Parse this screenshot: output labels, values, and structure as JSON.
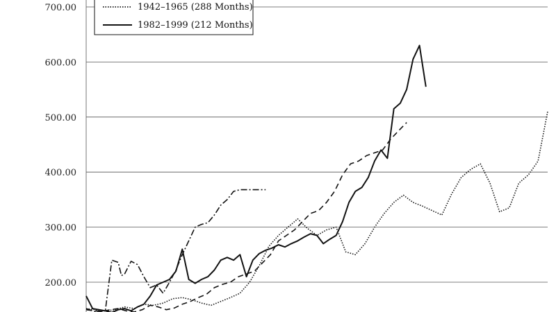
{
  "chart_data": {
    "type": "line",
    "title": "",
    "xlabel": "",
    "ylabel": "",
    "ylim": [
      150,
      720
    ],
    "xlim": [
      0,
      288
    ],
    "grid": "horizontal",
    "legend_placement": "top-left",
    "y_ticks": [
      {
        "value": 200,
        "label": "200.00"
      },
      {
        "value": 300,
        "label": "300.00"
      },
      {
        "value": 400,
        "label": "400.00"
      },
      {
        "value": 500,
        "label": "500.00"
      },
      {
        "value": 600,
        "label": "600.00"
      },
      {
        "value": 700,
        "label": "700.00"
      }
    ],
    "legend_entries": [
      {
        "label": "1942–1965 (288 Months)",
        "series_index": 2
      },
      {
        "label": "1982–1999 (212 Months)",
        "series_index": 3
      }
    ],
    "series": [
      {
        "style": "dashdot",
        "color": "#111111",
        "x": [
          0,
          4,
          8,
          12,
          16,
          20,
          22,
          24,
          28,
          32,
          36,
          40,
          44,
          48,
          52,
          56,
          60,
          64,
          68,
          72,
          76,
          80,
          84,
          88,
          92,
          96,
          100,
          104,
          108,
          112
        ],
        "y": [
          152,
          148,
          145,
          150,
          240,
          236,
          212,
          215,
          238,
          232,
          210,
          190,
          195,
          180,
          200,
          222,
          250,
          275,
          300,
          305,
          308,
          322,
          340,
          350,
          365,
          368,
          368,
          368,
          368,
          368
        ]
      },
      {
        "style": "dashed",
        "color": "#111111",
        "x": [
          0,
          5,
          10,
          15,
          20,
          25,
          30,
          35,
          40,
          45,
          50,
          55,
          60,
          65,
          70,
          75,
          80,
          85,
          90,
          95,
          100,
          105,
          110,
          115,
          120,
          125,
          130,
          135,
          140,
          145,
          150,
          155,
          160,
          165,
          170,
          175,
          180,
          185,
          190,
          195,
          200
        ],
        "y": [
          150,
          148,
          147,
          150,
          152,
          148,
          146,
          150,
          158,
          155,
          150,
          153,
          160,
          165,
          172,
          178,
          190,
          196,
          200,
          210,
          215,
          220,
          235,
          250,
          275,
          285,
          295,
          310,
          325,
          330,
          345,
          365,
          395,
          415,
          420,
          430,
          435,
          440,
          460,
          475,
          490
        ]
      },
      {
        "style": "dotted",
        "color": "#111111",
        "x": [
          0,
          6,
          12,
          18,
          24,
          30,
          36,
          42,
          48,
          54,
          60,
          66,
          72,
          78,
          84,
          90,
          96,
          102,
          108,
          114,
          120,
          126,
          132,
          138,
          144,
          150,
          156,
          162,
          168,
          174,
          180,
          186,
          192,
          198,
          204,
          210,
          216,
          222,
          228,
          234,
          240,
          246,
          252,
          258,
          264,
          270,
          276,
          282,
          288
        ],
        "y": [
          152,
          150,
          148,
          150,
          155,
          152,
          160,
          158,
          162,
          170,
          172,
          168,
          162,
          158,
          165,
          172,
          180,
          200,
          230,
          265,
          285,
          300,
          315,
          298,
          285,
          295,
          300,
          255,
          250,
          270,
          300,
          325,
          345,
          358,
          345,
          338,
          330,
          322,
          360,
          390,
          405,
          415,
          380,
          328,
          335,
          380,
          395,
          420,
          510
        ]
      },
      {
        "style": "solid",
        "color": "#111111",
        "x": [
          0,
          4,
          8,
          12,
          16,
          20,
          24,
          28,
          32,
          36,
          40,
          44,
          48,
          52,
          56,
          60,
          64,
          68,
          72,
          76,
          80,
          84,
          88,
          92,
          96,
          100,
          104,
          108,
          112,
          116,
          120,
          124,
          128,
          132,
          136,
          140,
          144,
          148,
          152,
          156,
          160,
          164,
          168,
          172,
          176,
          180,
          184,
          188,
          192,
          196,
          200,
          204,
          208,
          212
        ],
        "y": [
          175,
          152,
          150,
          148,
          145,
          150,
          152,
          148,
          155,
          160,
          175,
          195,
          200,
          205,
          220,
          260,
          205,
          198,
          205,
          210,
          222,
          240,
          245,
          240,
          250,
          210,
          240,
          252,
          258,
          262,
          268,
          264,
          270,
          275,
          282,
          288,
          285,
          270,
          278,
          285,
          310,
          345,
          365,
          372,
          390,
          420,
          440,
          425,
          515,
          525,
          550,
          605,
          630,
          555
        ]
      }
    ]
  }
}
